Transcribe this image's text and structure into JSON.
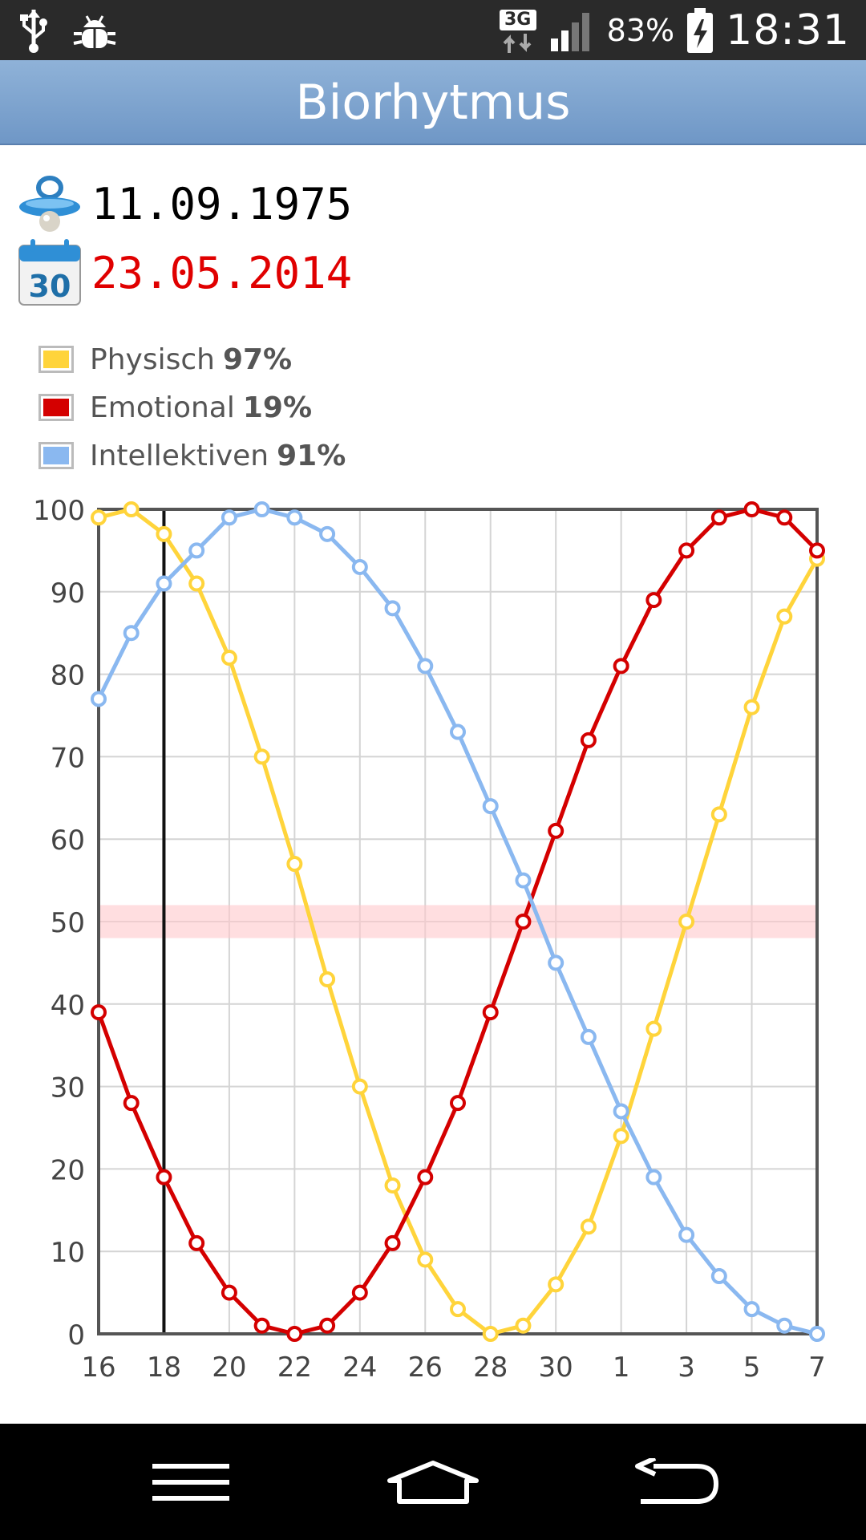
{
  "status_bar": {
    "network": "3G",
    "battery": "83%",
    "time": "18:31",
    "icons": [
      "usb-icon",
      "debug-icon",
      "data-transfer-icon",
      "signal-icon",
      "battery-charging-icon"
    ]
  },
  "app_bar": {
    "title": "Biorhytmus"
  },
  "birth": {
    "icon": "pacifier-icon",
    "date": "11.09.1975"
  },
  "target": {
    "icon": "calendar-icon",
    "calendar_day": "30",
    "date": "23.05.2014"
  },
  "legend": [
    {
      "label": "Physisch",
      "value": "97%",
      "color": "#ffd43b"
    },
    {
      "label": "Emotional",
      "value": "19%",
      "color": "#d40000"
    },
    {
      "label": "Intellektiven",
      "value": "91%",
      "color": "#8ab8f0"
    }
  ],
  "chart_data": {
    "type": "line",
    "x": [
      "16",
      "17",
      "18",
      "19",
      "20",
      "21",
      "22",
      "23",
      "24",
      "25",
      "26",
      "27",
      "28",
      "29",
      "30",
      "31",
      "1",
      "2",
      "3",
      "4",
      "5",
      "6",
      "7"
    ],
    "x_tick_labels": [
      "16",
      "18",
      "20",
      "22",
      "24",
      "26",
      "28",
      "30",
      "1",
      "3",
      "5",
      "7"
    ],
    "y_tick_labels": [
      "100",
      "90",
      "80",
      "70",
      "60",
      "50",
      "40",
      "30",
      "20",
      "10",
      "0"
    ],
    "ylim": [
      0,
      100
    ],
    "current_index": 2,
    "reference_band": [
      48,
      52
    ],
    "grid": true,
    "series": [
      {
        "name": "Physisch",
        "color": "#ffd43b",
        "values": [
          99,
          100,
          97,
          91,
          82,
          70,
          57,
          43,
          30,
          18,
          9,
          3,
          0,
          1,
          6,
          13,
          24,
          37,
          50,
          63,
          76,
          87,
          94
        ]
      },
      {
        "name": "Emotional",
        "color": "#d40000",
        "values": [
          39,
          28,
          19,
          11,
          5,
          1,
          0,
          1,
          5,
          11,
          19,
          28,
          39,
          50,
          61,
          72,
          81,
          89,
          95,
          99,
          100,
          99,
          95
        ]
      },
      {
        "name": "Intellektiven",
        "color": "#8ab8f0",
        "values": [
          77,
          85,
          91,
          95,
          99,
          100,
          99,
          97,
          93,
          88,
          81,
          73,
          64,
          55,
          45,
          36,
          27,
          19,
          12,
          7,
          3,
          1,
          0
        ]
      }
    ]
  },
  "nav_bar": {
    "menu_icon": "menu-icon",
    "home_icon": "home-icon",
    "back_icon": "back-icon"
  }
}
